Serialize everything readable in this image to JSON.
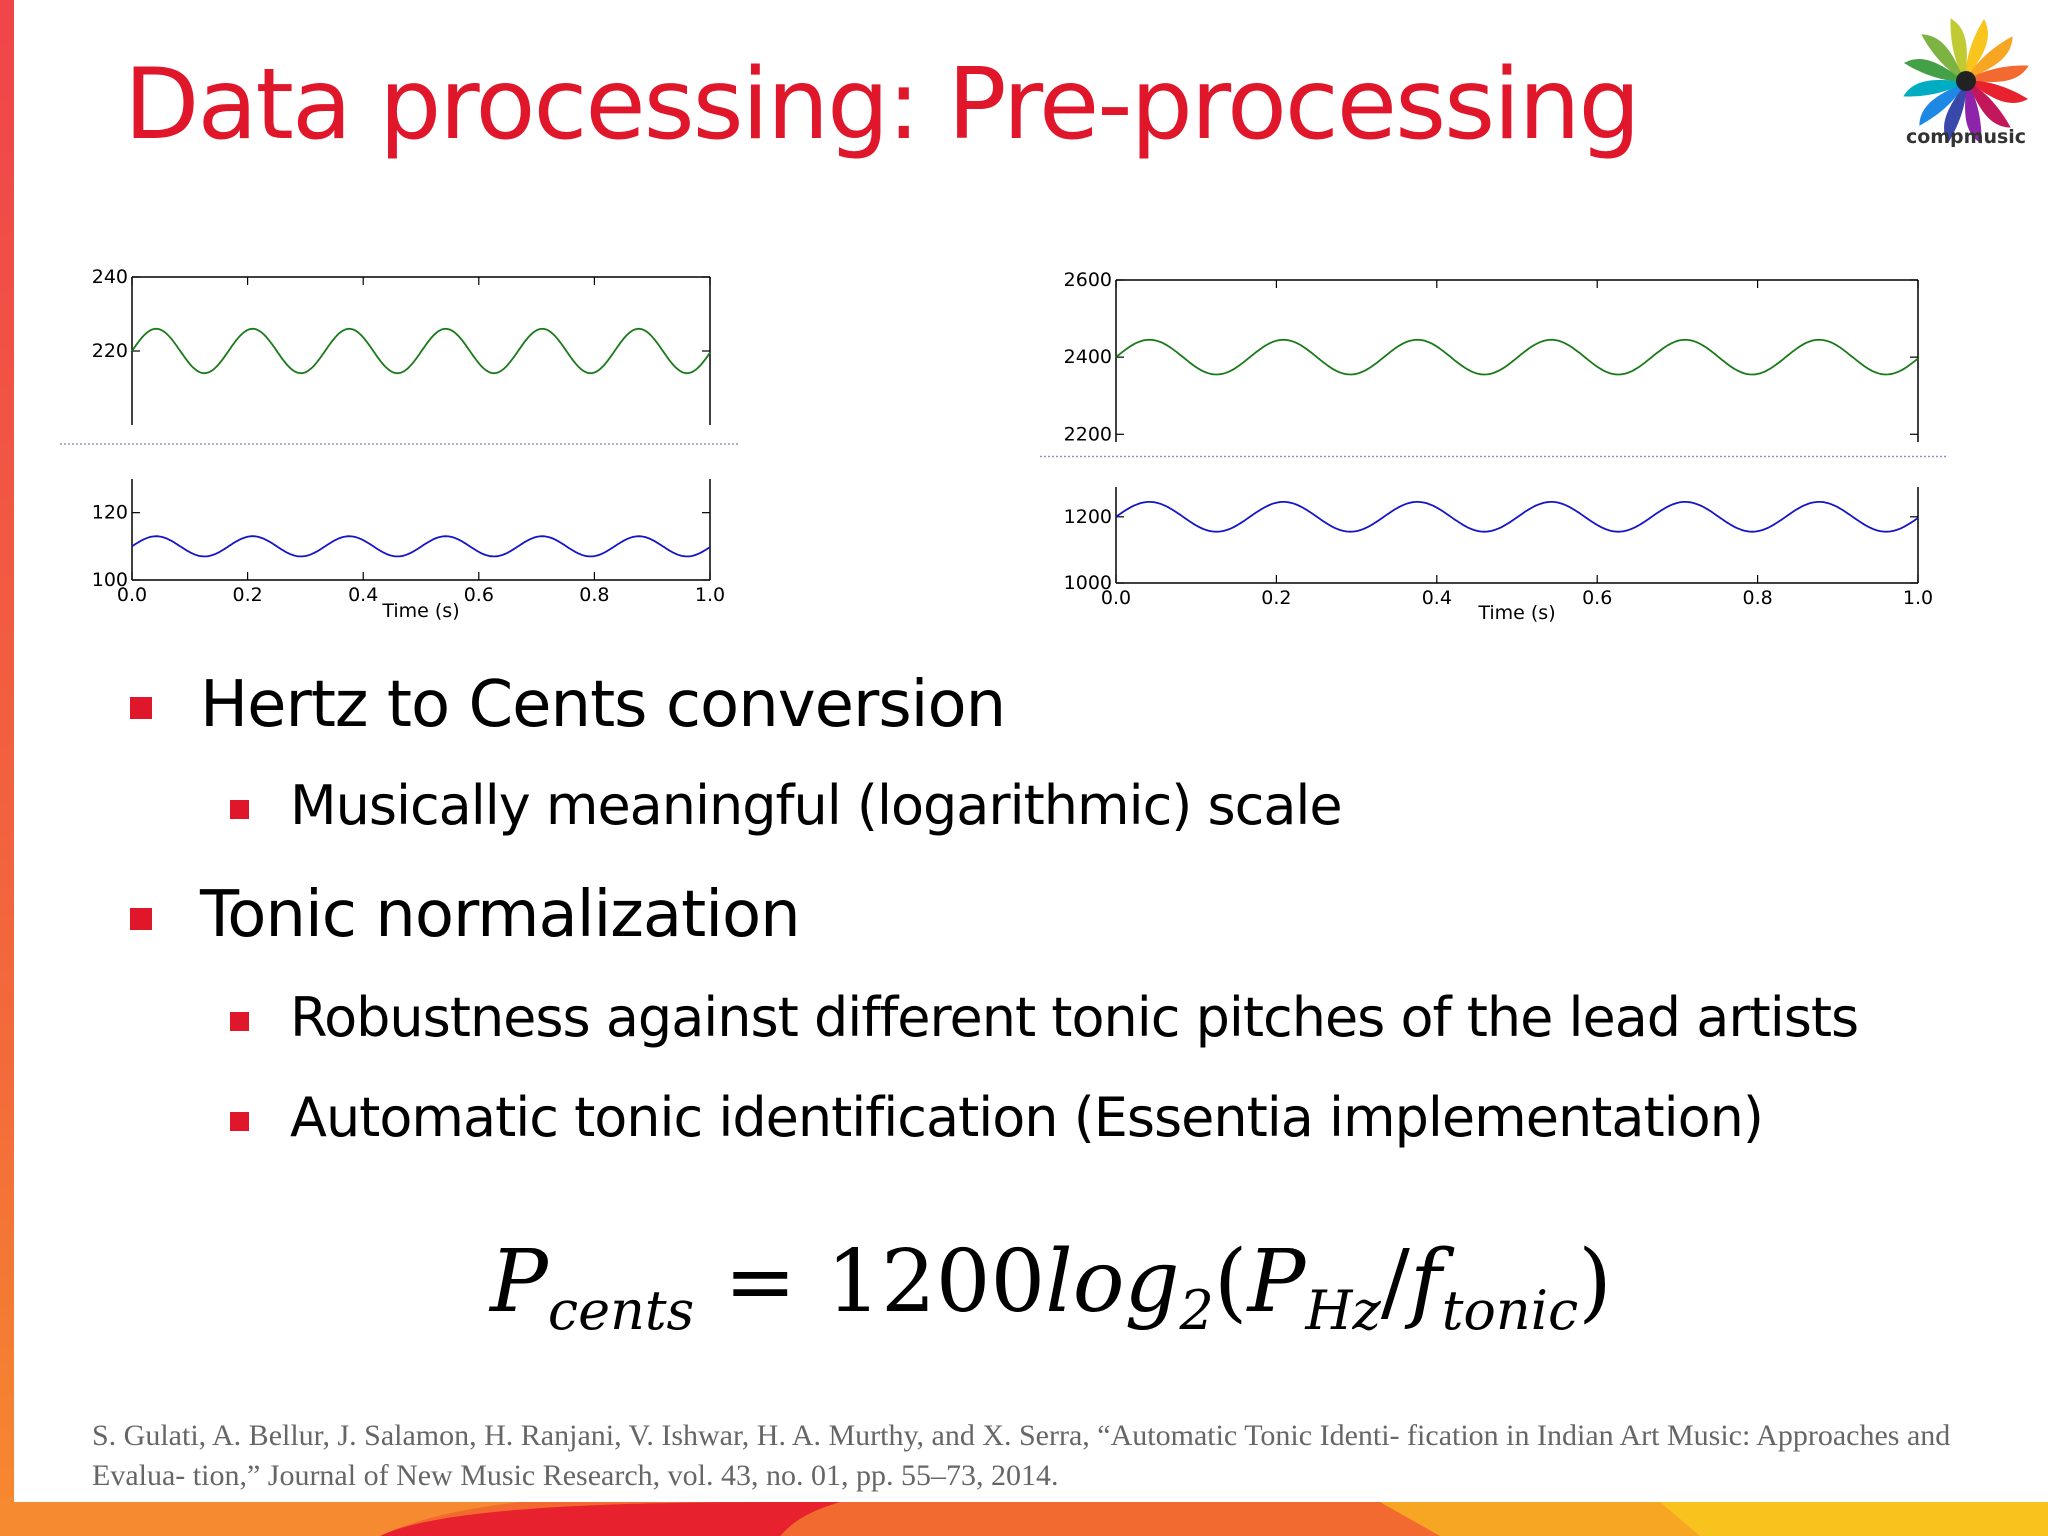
{
  "slide": {
    "title": "Data processing: Pre-processing",
    "logo_text": "compmusic",
    "accent_color": "#e0162b"
  },
  "bullets": [
    {
      "level": 1,
      "text": "Hertz to Cents conversion"
    },
    {
      "level": 2,
      "text": "Musically meaningful (logarithmic) scale"
    },
    {
      "level": 1,
      "text": "Tonic normalization"
    },
    {
      "level": 2,
      "text": "Robustness against different tonic pitches of the lead artists"
    },
    {
      "level": 2,
      "text": "Automatic tonic identification (Essentia implementation)"
    }
  ],
  "formula": {
    "lhs": "P",
    "lhs_sub": "cents",
    "eq": "=",
    "coef": "1200",
    "log": "log",
    "log_sub": "2",
    "open": "(",
    "p": "P",
    "p_sub": "Hz",
    "slash": "/",
    "f": "f",
    "f_sub": "tonic",
    "close": ")"
  },
  "citation": "S. Gulati, A. Bellur, J. Salamon, H. Ranjani, V. Ishwar, H. A. Murthy, and X. Serra, “Automatic Tonic Identi- fication in Indian Art Music: Approaches and Evalua- tion,” Journal of New Music Research, vol. 43, no. 01, pp. 55–73, 2014.",
  "chart_data": [
    {
      "type": "line",
      "title": "",
      "xlabel": "Time (s)",
      "x_ticks": [
        "0.0",
        "0.2",
        "0.4",
        "0.6",
        "0.8",
        "1.0"
      ],
      "xlim": [
        0,
        1
      ],
      "broken_y_axis": true,
      "upper_panel": {
        "ylim": [
          200,
          240
        ],
        "y_ticks": [
          "220",
          "240"
        ],
        "series": [
          {
            "color": "#1a7a1a",
            "center": 220,
            "amplitude": 6,
            "period_s": 0.167,
            "x": [
              0.0,
              0.04,
              0.125,
              0.21,
              0.29,
              0.375,
              0.46,
              0.54,
              0.625,
              0.71,
              0.79,
              0.875,
              0.96,
              1.0
            ],
            "values": [
              220,
              226,
              214,
              226,
              214,
              226,
              214,
              226,
              214,
              226,
              214,
              226,
              214,
              218.5
            ]
          }
        ]
      },
      "lower_panel": {
        "ylim": [
          100,
          130
        ],
        "y_ticks": [
          "100",
          "120"
        ],
        "series": [
          {
            "color": "#1515c8",
            "center": 110,
            "amplitude": 3,
            "period_s": 0.167,
            "x": [
              0.0,
              0.04,
              0.125,
              0.21,
              0.29,
              0.375,
              0.46,
              0.54,
              0.625,
              0.71,
              0.79,
              0.875,
              0.96,
              1.0
            ],
            "values": [
              110,
              113,
              107,
              113,
              107,
              113,
              107,
              113,
              107,
              113,
              107,
              113,
              107,
              109.3
            ]
          }
        ]
      }
    },
    {
      "type": "line",
      "title": "",
      "xlabel": "Time (s)",
      "x_ticks": [
        "0.0",
        "0.2",
        "0.4",
        "0.6",
        "0.8",
        "1.0"
      ],
      "xlim": [
        0,
        1
      ],
      "broken_y_axis": true,
      "upper_panel": {
        "ylim": [
          2180,
          2600
        ],
        "y_ticks": [
          "2200",
          "2400",
          "2600"
        ],
        "series": [
          {
            "color": "#1a7a1a",
            "center": 2400,
            "amplitude": 45,
            "period_s": 0.167,
            "x": [
              0.0,
              0.04,
              0.125,
              0.21,
              0.29,
              0.375,
              0.46,
              0.54,
              0.625,
              0.71,
              0.79,
              0.875,
              0.96,
              1.0
            ],
            "values": [
              2400,
              2445,
              2355,
              2445,
              2355,
              2445,
              2355,
              2445,
              2355,
              2445,
              2355,
              2445,
              2355,
              2390
            ]
          }
        ]
      },
      "lower_panel": {
        "ylim": [
          1000,
          1290
        ],
        "y_ticks": [
          "1000",
          "1200"
        ],
        "series": [
          {
            "color": "#1515c8",
            "center": 1200,
            "amplitude": 45,
            "period_s": 0.167,
            "x": [
              0.0,
              0.04,
              0.125,
              0.21,
              0.29,
              0.375,
              0.46,
              0.54,
              0.625,
              0.71,
              0.79,
              0.875,
              0.96,
              1.0
            ],
            "values": [
              1200,
              1245,
              1155,
              1245,
              1155,
              1245,
              1155,
              1245,
              1155,
              1245,
              1155,
              1245,
              1155,
              1190
            ]
          }
        ]
      }
    }
  ]
}
